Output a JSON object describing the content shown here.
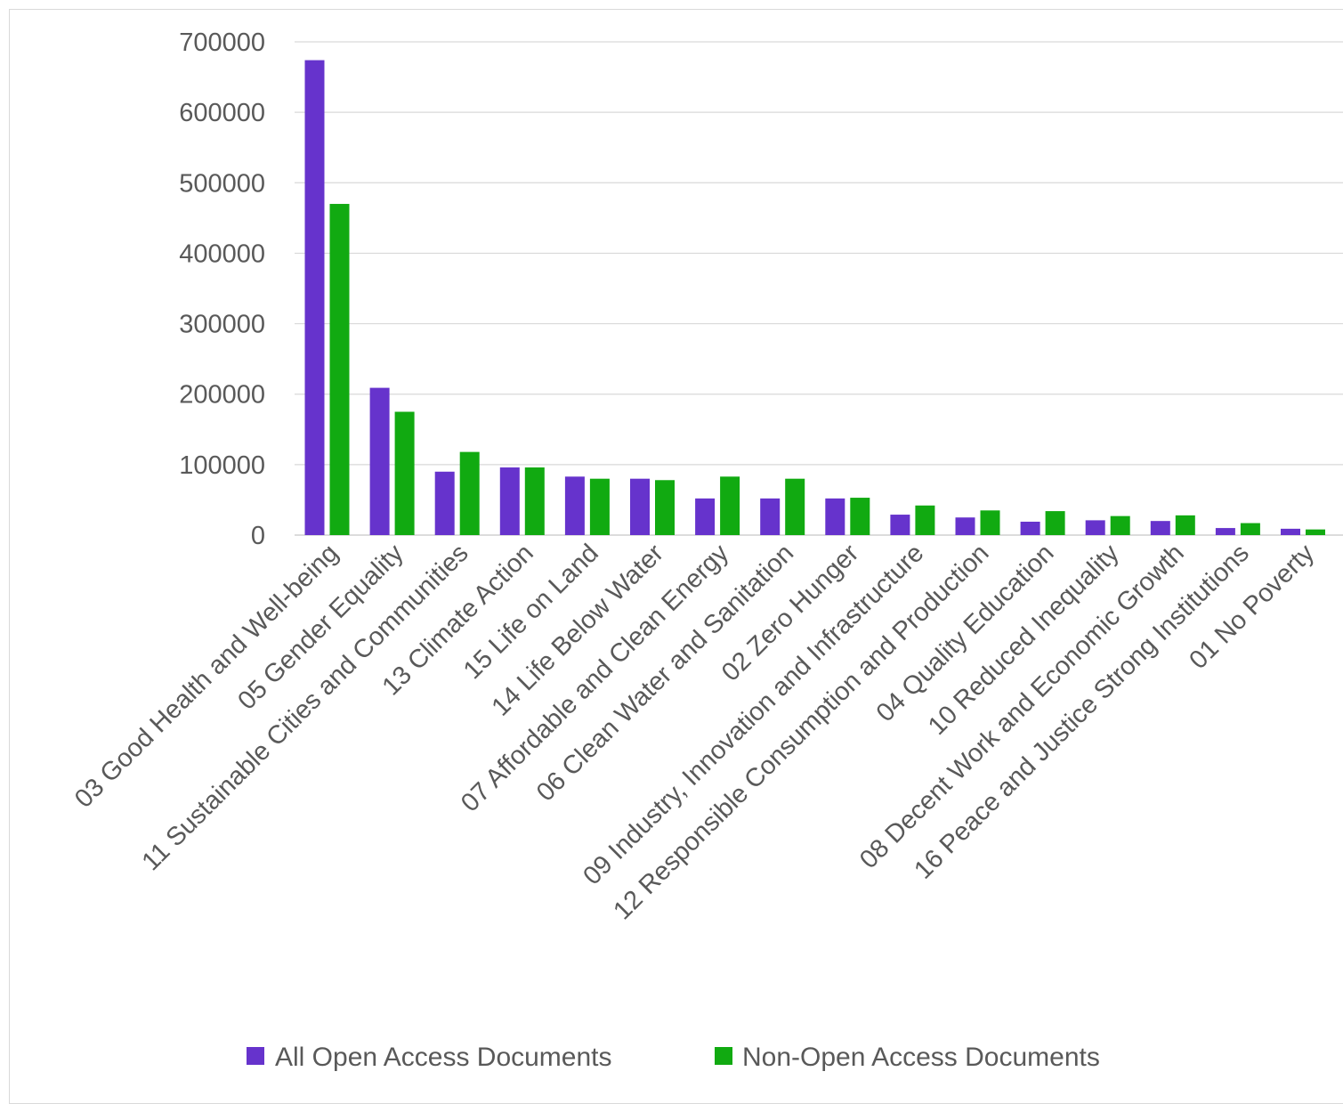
{
  "chart_data": {
    "type": "bar",
    "categories": [
      "03 Good Health and Well-being",
      "05 Gender Equality",
      "11 Sustainable Cities and Communities",
      "13 Climate Action",
      "15 Life on Land",
      "14 Life Below Water",
      "07 Affordable and Clean Energy",
      "06 Clean Water and Sanitation",
      "02 Zero Hunger",
      "09 Industry, Innovation and Infrastructure",
      "12 Responsible Consumption and Production",
      "04 Quality Education",
      "10 Reduced Inequality",
      "08 Decent Work and Economic Growth",
      "16 Peace and Justice Strong Institutions",
      "01 No Poverty"
    ],
    "series": [
      {
        "name": "All Open Access Documents",
        "color": "#6633cc",
        "values": [
          674000,
          209000,
          90000,
          96000,
          83000,
          80000,
          52000,
          52000,
          52000,
          29000,
          25000,
          19000,
          21000,
          20000,
          10000,
          9000
        ]
      },
      {
        "name": "Non-Open Access Documents",
        "color": "#11aa11",
        "values": [
          470000,
          175000,
          118000,
          96000,
          80000,
          78000,
          83000,
          80000,
          53000,
          42000,
          35000,
          34000,
          27000,
          28000,
          17000,
          8000
        ]
      }
    ],
    "yticks": [
      "0",
      "100000",
      "200000",
      "300000",
      "400000",
      "500000",
      "600000",
      "700000"
    ],
    "ylim": [
      0,
      700000
    ],
    "grid": true,
    "legend_position": "bottom",
    "title": "",
    "xlabel": "",
    "ylabel": ""
  }
}
